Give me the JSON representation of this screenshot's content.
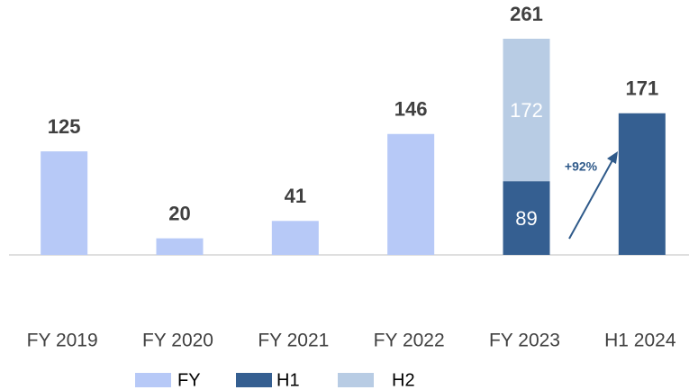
{
  "chart_data": {
    "type": "stacked_bar",
    "categories": [
      "FY 2019",
      "FY 2020",
      "FY 2021",
      "FY 2022",
      "FY 2023",
      "H1 2024"
    ],
    "series": [
      {
        "name": "FY",
        "color": "#b7c9f7",
        "values": [
          125,
          20,
          41,
          146,
          null,
          null
        ]
      },
      {
        "name": "H1",
        "color": "#355f91",
        "values": [
          null,
          null,
          null,
          null,
          89,
          171
        ]
      },
      {
        "name": "H2",
        "color": "#b8cce4",
        "values": [
          null,
          null,
          null,
          null,
          172,
          null
        ]
      }
    ],
    "totals": [
      125,
      20,
      41,
      146,
      261,
      171
    ],
    "annotation": "+92%",
    "ylim": [
      0,
      261
    ]
  }
}
